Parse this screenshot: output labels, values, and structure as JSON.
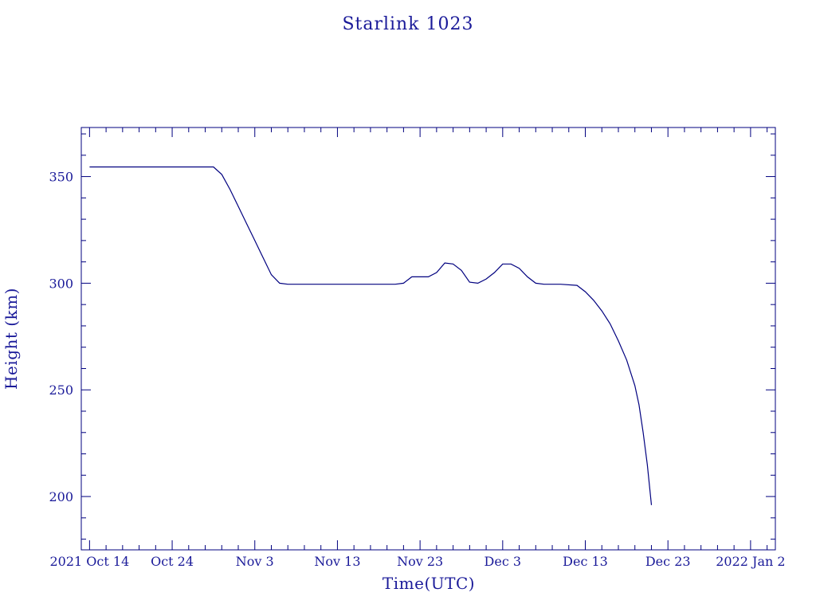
{
  "chart_data": {
    "type": "line",
    "title": "Starlink 1023",
    "xlabel": "Time(UTC)",
    "ylabel": "Height (km)",
    "x_tick_labels": [
      "2021 Oct 14",
      "Oct 24",
      "Nov 3",
      "Nov 13",
      "Nov 23",
      "Dec 3",
      "Dec 13",
      "Dec 23",
      "2022 Jan 2"
    ],
    "y_tick_labels": [
      "200",
      "250",
      "300",
      "350"
    ],
    "xlim": [
      "2021-10-13",
      "2022-01-05"
    ],
    "ylim": [
      175,
      373
    ],
    "grid": false,
    "legend": "none",
    "color": "#00007f",
    "series": [
      {
        "x": [
          "2021-10-14",
          "2021-10-19",
          "2021-10-24",
          "2021-10-29",
          "2021-10-30",
          "2021-10-31",
          "2021-11-01",
          "2021-11-02",
          "2021-11-03",
          "2021-11-04",
          "2021-11-05",
          "2021-11-06",
          "2021-11-07",
          "2021-11-13",
          "2021-11-19",
          "2021-11-20",
          "2021-11-21",
          "2021-11-22",
          "2021-11-24",
          "2021-11-25",
          "2021-11-26",
          "2021-11-27",
          "2021-11-28",
          "2021-11-29",
          "2021-11-30",
          "2021-12-01",
          "2021-12-02",
          "2021-12-03",
          "2021-12-04",
          "2021-12-05",
          "2021-12-06",
          "2021-12-07",
          "2021-12-08",
          "2021-12-10",
          "2021-12-12",
          "2021-12-13",
          "2021-12-14",
          "2021-12-15",
          "2021-12-16",
          "2021-12-17",
          "2021-12-18",
          "2021-12-19",
          "2021-12-19T12:00",
          "2021-12-20",
          "2021-12-20T12:00",
          "2021-12-21"
        ],
        "y": [
          354.5,
          354.5,
          354.5,
          354.5,
          351,
          344,
          336,
          328,
          320,
          312,
          304,
          300,
          299.5,
          299.5,
          299.5,
          299.5,
          300,
          303,
          303,
          305,
          309.5,
          309,
          306,
          300.5,
          300,
          302,
          305,
          309,
          309,
          307,
          303,
          300,
          299.5,
          299.5,
          299,
          296,
          292,
          287,
          281,
          273,
          264,
          252,
          243,
          230,
          215,
          196
        ]
      }
    ]
  }
}
